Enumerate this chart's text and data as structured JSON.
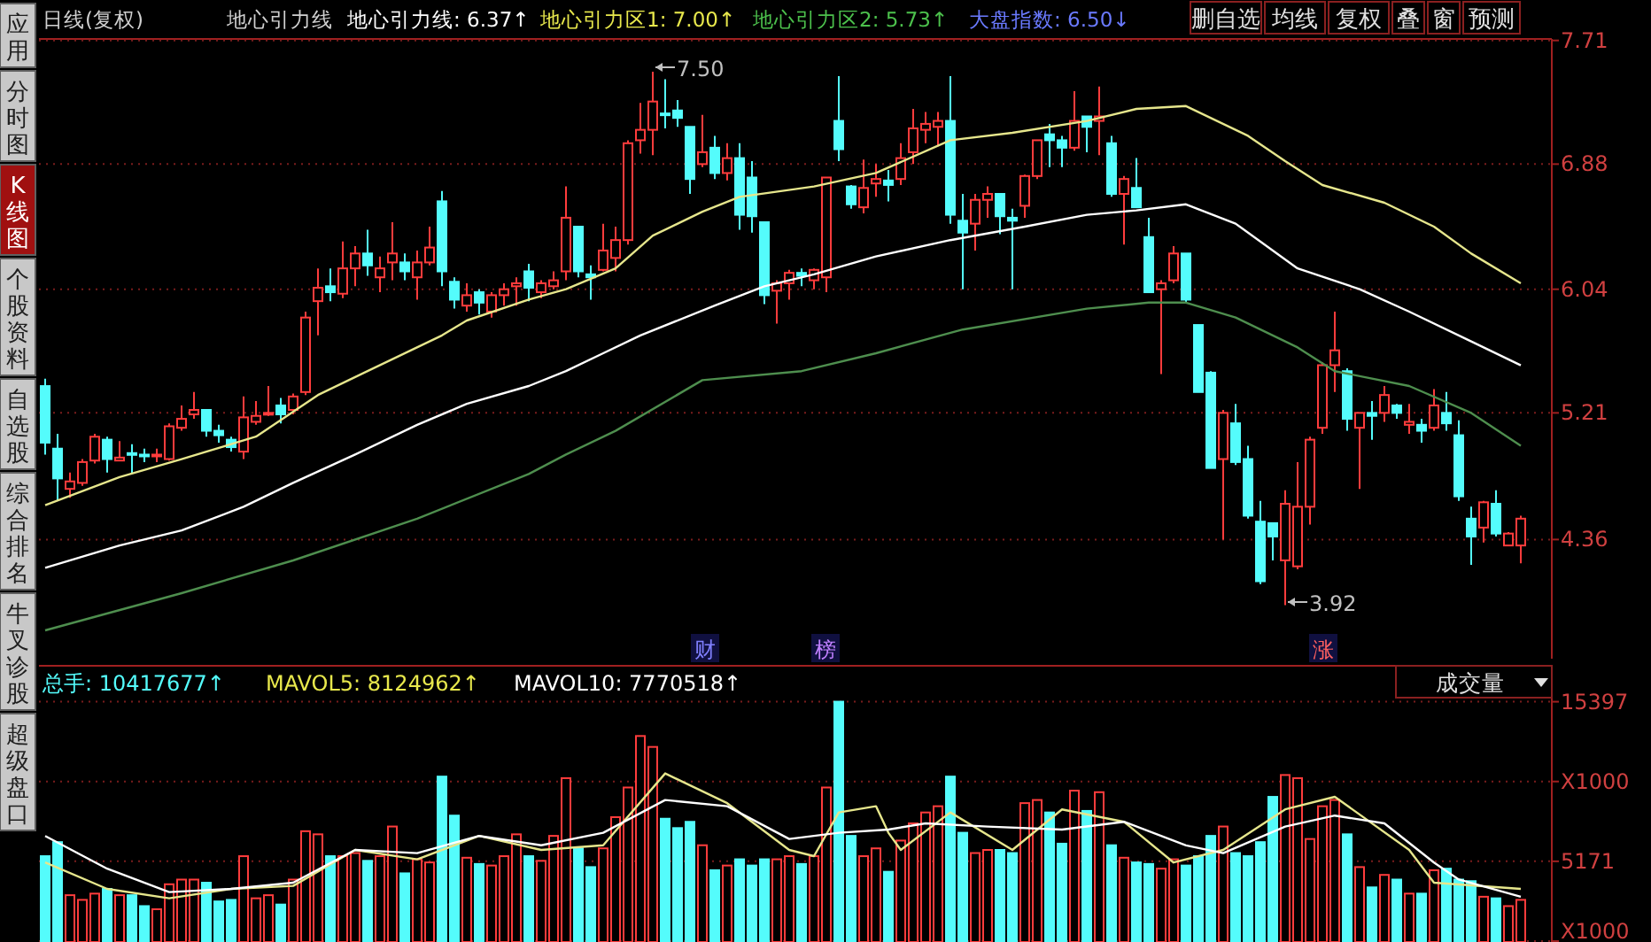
{
  "chart_data": [
    {
      "type": "candlestick",
      "ylim": [
        3.56,
        7.72
      ],
      "yticks": [
        7.71,
        6.88,
        6.04,
        5.21,
        4.36
      ],
      "grid": "y",
      "categories": [
        null,
        null,
        null,
        null,
        null,
        null,
        null,
        null,
        null,
        null,
        null,
        null,
        null,
        null,
        null,
        null,
        null,
        null,
        null,
        null,
        null,
        null,
        null,
        null,
        null,
        null,
        null,
        null,
        null,
        null,
        null,
        null,
        null,
        null,
        null,
        null,
        null,
        null,
        null,
        null,
        null,
        null,
        null,
        null,
        null,
        null,
        null,
        null,
        null,
        null,
        null,
        null,
        null,
        null,
        null,
        null,
        null,
        null,
        null,
        null,
        null,
        null,
        null,
        null,
        null,
        null,
        null,
        null,
        null,
        null,
        null,
        null,
        null,
        null,
        null,
        null,
        null,
        null,
        null,
        null,
        null,
        null,
        null,
        null,
        null,
        null,
        null,
        null,
        null,
        null,
        null,
        null,
        null,
        null,
        null,
        null,
        null,
        null,
        null,
        null,
        null,
        null,
        null,
        null,
        null,
        null,
        null,
        null,
        null,
        null,
        null,
        null,
        null,
        null,
        null,
        null,
        null,
        null,
        null,
        null
      ],
      "colors": [
        "#54fcfc",
        "#54fcfc",
        "#ff3c3c",
        "#ff3c3c",
        "#ff3c3c",
        "#54fcfc",
        "#ff3c3c",
        "#54fcfc",
        "#54fcfc",
        "#ff3c3c",
        "#ff3c3c",
        "#ff3c3c",
        "#ff3c3c",
        "#54fcfc",
        "#54fcfc",
        "#54fcfc",
        "#ff3c3c",
        "#ff3c3c",
        "#ff3c3c",
        "#54fcfc",
        "#ff3c3c",
        "#ff3c3c",
        "#ff3c3c",
        "#54fcfc",
        "#ff3c3c",
        "#ff3c3c",
        "#54fcfc",
        "#ff3c3c",
        "#ff3c3c",
        "#54fcfc",
        "#ff3c3c",
        "#ff3c3c",
        "#54fcfc",
        "#54fcfc",
        "#ff3c3c",
        "#54fcfc",
        "#ff3c3c",
        "#ff3c3c",
        "#ff3c3c",
        "#54fcfc",
        "#ff3c3c",
        "#ff3c3c",
        "#ff3c3c",
        "#54fcfc",
        "#54fcfc",
        "#ff3c3c",
        "#ff3c3c",
        "#ff3c3c",
        "#ff3c3c",
        "#ff3c3c",
        "#54fcfc",
        "#54fcfc",
        "#54fcfc",
        "#ff3c3c",
        "#54fcfc",
        "#ff3c3c",
        "#54fcfc",
        "#54fcfc",
        "#54fcfc",
        "#ff3c3c",
        "#ff3c3c",
        "#54fcfc",
        "#ff3c3c",
        "#ff3c3c",
        "#54fcfc",
        "#54fcfc",
        "#ff3c3c",
        "#ff3c3c",
        "#54fcfc",
        "#ff3c3c",
        "#ff3c3c",
        "#ff3c3c",
        "#ff3c3c",
        "#54fcfc",
        "#54fcfc",
        "#ff3c3c",
        "#ff3c3c",
        "#54fcfc",
        "#54fcfc",
        "#ff3c3c",
        "#ff3c3c",
        "#54fcfc",
        "#54fcfc",
        "#ff3c3c",
        "#54fcfc",
        "#ff3c3c",
        "#54fcfc",
        "#ff3c3c",
        "#54fcfc",
        "#54fcfc",
        "#ff3c3c",
        "#ff3c3c",
        "#54fcfc",
        "#54fcfc",
        "#54fcfc",
        "#ff3c3c",
        "#54fcfc",
        "#54fcfc",
        "#54fcfc",
        "#54fcfc",
        "#ff3c3c",
        "#ff3c3c",
        "#ff3c3c",
        "#ff3c3c",
        "#ff3c3c",
        "#54fcfc",
        "#ff3c3c",
        "#54fcfc",
        "#ff3c3c",
        "#54fcfc",
        "#ff3c3c",
        "#54fcfc",
        "#ff3c3c",
        "#54fcfc",
        "#54fcfc",
        "#54fcfc",
        "#ff3c3c",
        "#54fcfc",
        "#ff3c3c",
        "#ff3c3c"
      ],
      "ohlc": [
        [
          5.39,
          5.44,
          4.93,
          5.01
        ],
        [
          4.97,
          5.07,
          4.62,
          4.77
        ],
        [
          4.7,
          4.81,
          4.64,
          4.75
        ],
        [
          4.74,
          4.9,
          4.72,
          4.88
        ],
        [
          4.89,
          5.07,
          4.87,
          5.05
        ],
        [
          5.03,
          5.05,
          4.81,
          4.9
        ],
        [
          4.89,
          5.02,
          4.89,
          4.91
        ],
        [
          4.94,
          5.0,
          4.8,
          4.93
        ],
        [
          4.93,
          4.97,
          4.88,
          4.92
        ],
        [
          4.92,
          4.97,
          4.88,
          4.93
        ],
        [
          4.9,
          5.14,
          4.89,
          5.12
        ],
        [
          5.11,
          5.26,
          5.09,
          5.17
        ],
        [
          5.2,
          5.35,
          5.17,
          5.23
        ],
        [
          5.23,
          5.23,
          5.05,
          5.09
        ],
        [
          5.09,
          5.13,
          5.01,
          5.06
        ],
        [
          5.03,
          5.05,
          4.95,
          4.98
        ],
        [
          4.95,
          5.32,
          4.9,
          5.18
        ],
        [
          5.15,
          5.29,
          5.13,
          5.19
        ],
        [
          5.2,
          5.39,
          5.19,
          5.21
        ],
        [
          5.26,
          5.31,
          5.14,
          5.2
        ],
        [
          5.23,
          5.34,
          5.2,
          5.32
        ],
        [
          5.35,
          5.89,
          5.33,
          5.85
        ],
        [
          5.96,
          6.18,
          5.73,
          6.05
        ],
        [
          6.06,
          6.18,
          5.96,
          6.02
        ],
        [
          6.01,
          6.36,
          5.98,
          6.18
        ],
        [
          6.18,
          6.33,
          6.06,
          6.28
        ],
        [
          6.28,
          6.44,
          6.13,
          6.2
        ],
        [
          6.12,
          6.26,
          6.02,
          6.18
        ],
        [
          6.22,
          6.49,
          6.1,
          6.28
        ],
        [
          6.22,
          6.28,
          6.1,
          6.16
        ],
        [
          6.12,
          6.3,
          5.97,
          6.22
        ],
        [
          6.22,
          6.46,
          6.2,
          6.32
        ],
        [
          6.63,
          6.7,
          6.06,
          6.16
        ],
        [
          6.09,
          6.12,
          5.91,
          5.97
        ],
        [
          5.93,
          6.08,
          5.89,
          6.0
        ],
        [
          6.02,
          6.04,
          5.87,
          5.95
        ],
        [
          5.89,
          6.02,
          5.85,
          6.0
        ],
        [
          6.0,
          6.08,
          5.93,
          6.04
        ],
        [
          6.06,
          6.12,
          5.93,
          6.08
        ],
        [
          6.16,
          6.21,
          5.96,
          6.05
        ],
        [
          6.02,
          6.1,
          5.98,
          6.08
        ],
        [
          6.06,
          6.16,
          6.04,
          6.1
        ],
        [
          6.16,
          6.73,
          6.1,
          6.52
        ],
        [
          6.46,
          6.46,
          6.12,
          6.16
        ],
        [
          6.14,
          6.2,
          5.97,
          6.12
        ],
        [
          6.17,
          6.48,
          6.16,
          6.3
        ],
        [
          6.25,
          6.46,
          6.16,
          6.37
        ],
        [
          6.37,
          7.04,
          6.34,
          7.02
        ],
        [
          7.04,
          7.29,
          6.95,
          7.11
        ],
        [
          7.11,
          7.5,
          6.94,
          7.3
        ],
        [
          7.22,
          7.45,
          7.12,
          7.21
        ],
        [
          7.24,
          7.31,
          7.13,
          7.19
        ],
        [
          7.13,
          7.13,
          6.68,
          6.78
        ],
        [
          6.88,
          7.21,
          6.86,
          6.96
        ],
        [
          6.99,
          7.07,
          6.78,
          6.82
        ],
        [
          6.82,
          7.02,
          6.77,
          6.92
        ],
        [
          6.92,
          7.02,
          6.44,
          6.54
        ],
        [
          6.79,
          6.9,
          6.42,
          6.53
        ],
        [
          6.49,
          6.49,
          5.94,
          6.0
        ],
        [
          6.03,
          6.1,
          5.81,
          6.08
        ],
        [
          6.08,
          6.17,
          5.97,
          6.15
        ],
        [
          6.15,
          6.18,
          6.06,
          6.13
        ],
        [
          6.1,
          6.18,
          6.04,
          6.17
        ],
        [
          6.12,
          6.79,
          6.02,
          6.79
        ],
        [
          7.17,
          7.47,
          6.9,
          6.98
        ],
        [
          6.73,
          6.74,
          6.58,
          6.61
        ],
        [
          6.59,
          6.91,
          6.55,
          6.72
        ],
        [
          6.75,
          6.88,
          6.66,
          6.78
        ],
        [
          6.77,
          6.84,
          6.63,
          6.74
        ],
        [
          6.78,
          7.02,
          6.74,
          6.92
        ],
        [
          6.96,
          7.25,
          6.88,
          7.12
        ],
        [
          7.11,
          7.23,
          7.02,
          7.15
        ],
        [
          7.13,
          7.23,
          7.0,
          7.17
        ],
        [
          7.17,
          7.47,
          6.48,
          6.54
        ],
        [
          6.5,
          6.68,
          6.04,
          6.42
        ],
        [
          6.48,
          6.68,
          6.3,
          6.64
        ],
        [
          6.64,
          6.73,
          6.52,
          6.68
        ],
        [
          6.68,
          6.68,
          6.41,
          6.53
        ],
        [
          6.52,
          6.58,
          6.04,
          6.5
        ],
        [
          6.6,
          6.81,
          6.52,
          6.8
        ],
        [
          6.8,
          7.04,
          6.78,
          7.04
        ],
        [
          7.08,
          7.15,
          6.86,
          7.04
        ],
        [
          7.04,
          7.07,
          6.86,
          6.99
        ],
        [
          6.99,
          7.37,
          6.97,
          7.17
        ],
        [
          7.2,
          7.2,
          6.96,
          7.13
        ],
        [
          7.17,
          7.4,
          6.94,
          7.2
        ],
        [
          7.02,
          7.07,
          6.66,
          6.68
        ],
        [
          6.68,
          6.8,
          6.34,
          6.78
        ],
        [
          6.72,
          6.92,
          6.59,
          6.59
        ],
        [
          6.39,
          6.52,
          6.02,
          6.02
        ],
        [
          6.04,
          6.1,
          5.47,
          6.08
        ],
        [
          6.1,
          6.33,
          6.08,
          6.28
        ],
        [
          6.28,
          6.28,
          5.95,
          5.97
        ],
        [
          5.8,
          5.8,
          5.35,
          5.35
        ],
        [
          5.48,
          5.49,
          4.84,
          4.84
        ],
        [
          4.9,
          5.23,
          4.36,
          5.21
        ],
        [
          5.14,
          5.27,
          4.86,
          4.88
        ],
        [
          4.9,
          4.99,
          4.5,
          4.52
        ],
        [
          4.48,
          4.62,
          4.06,
          4.08
        ],
        [
          4.47,
          4.47,
          4.22,
          4.38
        ],
        [
          4.22,
          4.69,
          3.92,
          4.6
        ],
        [
          4.18,
          4.88,
          4.16,
          4.58
        ],
        [
          4.58,
          5.05,
          4.46,
          5.03
        ],
        [
          5.11,
          5.55,
          5.07,
          5.53
        ],
        [
          5.53,
          5.89,
          5.35,
          5.63
        ],
        [
          5.49,
          5.51,
          5.09,
          5.17
        ],
        [
          5.11,
          5.21,
          4.7,
          5.21
        ],
        [
          5.21,
          5.29,
          5.03,
          5.19
        ],
        [
          5.21,
          5.39,
          5.15,
          5.33
        ],
        [
          5.26,
          5.27,
          5.17,
          5.21
        ],
        [
          5.13,
          5.27,
          5.07,
          5.15
        ],
        [
          5.13,
          5.17,
          5.01,
          5.09
        ],
        [
          5.11,
          5.37,
          5.09,
          5.26
        ],
        [
          5.21,
          5.35,
          5.09,
          5.14
        ],
        [
          5.06,
          5.16,
          4.62,
          4.65
        ],
        [
          4.5,
          4.58,
          4.19,
          4.38
        ],
        [
          4.44,
          4.62,
          4.34,
          4.61
        ],
        [
          4.6,
          4.69,
          4.38,
          4.4
        ],
        [
          4.32,
          4.41,
          4.32,
          4.4
        ],
        [
          4.32,
          4.52,
          4.2,
          4.5
        ]
      ],
      "series": [
        {
          "type": "line",
          "color": "#e6e68c",
          "values": [
            4.59,
            null,
            null,
            null,
            null,
            null,
            4.78,
            null,
            null,
            null,
            null,
            4.9,
            null,
            null,
            null,
            null,
            null,
            5.05,
            null,
            null,
            null,
            null,
            5.33,
            null,
            null,
            null,
            5.49,
            null,
            null,
            null,
            null,
            null,
            5.73,
            null,
            5.83,
            null,
            null,
            null,
            null,
            5.97,
            null,
            null,
            6.04,
            null,
            null,
            null,
            6.18,
            null,
            null,
            6.4,
            null,
            null,
            null,
            6.56,
            null,
            null,
            6.66,
            null,
            null,
            null,
            null,
            null,
            6.73,
            null,
            null,
            null,
            null,
            6.82,
            null,
            null,
            null,
            null,
            null,
            7.04,
            null,
            null,
            null,
            null,
            7.09,
            null,
            null,
            null,
            null,
            null,
            7.17,
            null,
            null,
            null,
            7.25,
            null,
            null,
            null,
            7.27,
            null,
            null,
            null,
            null,
            7.07,
            null,
            null,
            6.9,
            null,
            null,
            6.74,
            null,
            null,
            null,
            null,
            6.62,
            null,
            null,
            null,
            6.46,
            null,
            null,
            6.28,
            null,
            null,
            null,
            6.08
          ]
        },
        {
          "type": "line",
          "color": "#ffffff",
          "values": [
            4.17,
            null,
            null,
            null,
            null,
            null,
            4.32,
            null,
            null,
            null,
            null,
            4.42,
            null,
            null,
            null,
            null,
            4.58,
            null,
            null,
            null,
            4.74,
            null,
            null,
            null,
            null,
            4.93,
            null,
            null,
            null,
            null,
            5.13,
            null,
            null,
            null,
            5.27,
            null,
            null,
            null,
            null,
            5.39,
            null,
            null,
            5.49,
            null,
            null,
            5.61,
            null,
            null,
            5.73,
            null,
            null,
            null,
            null,
            null,
            5.93,
            null,
            null,
            null,
            6.06,
            null,
            null,
            null,
            6.14,
            null,
            null,
            null,
            null,
            6.26,
            null,
            null,
            null,
            null,
            null,
            6.37,
            null,
            null,
            null,
            null,
            null,
            6.46,
            null,
            null,
            null,
            null,
            6.54,
            null,
            null,
            null,
            6.57,
            null,
            null,
            null,
            6.61,
            null,
            null,
            null,
            6.48,
            null,
            null,
            null,
            null,
            6.18,
            null,
            null,
            null,
            null,
            6.04,
            null,
            null,
            null,
            5.89,
            null,
            null,
            null,
            null,
            5.69,
            null,
            null,
            null,
            5.53
          ]
        },
        {
          "type": "line",
          "color": "#4e8e4e",
          "values": [
            3.75,
            null,
            null,
            null,
            null,
            null,
            null,
            null,
            null,
            null,
            null,
            4.0,
            null,
            null,
            null,
            null,
            null,
            null,
            null,
            null,
            4.22,
            null,
            null,
            null,
            null,
            null,
            null,
            null,
            null,
            null,
            4.5,
            null,
            null,
            null,
            null,
            null,
            null,
            null,
            null,
            4.8,
            null,
            null,
            4.93,
            null,
            null,
            null,
            5.09,
            null,
            null,
            null,
            null,
            null,
            null,
            5.43,
            null,
            null,
            null,
            null,
            null,
            null,
            null,
            5.49,
            null,
            null,
            null,
            null,
            null,
            5.61,
            null,
            null,
            null,
            null,
            null,
            null,
            5.77,
            null,
            null,
            null,
            null,
            null,
            null,
            null,
            null,
            null,
            5.91,
            null,
            null,
            null,
            null,
            5.95,
            null,
            null,
            5.95,
            null,
            null,
            null,
            5.85,
            null,
            null,
            null,
            null,
            5.65,
            null,
            null,
            5.49,
            null,
            null,
            null,
            null,
            null,
            5.39,
            null,
            null,
            null,
            null,
            5.21,
            null,
            null,
            null,
            4.99
          ]
        }
      ],
      "annotations": [
        "日线(复权)",
        "地心引力线",
        "地心引力线: 6.37↑",
        "地心引力区1: 7.00↑",
        "地心引力区2: 5.73↑",
        "大盘指数: 6.50↓",
        "删自选",
        "均线",
        "复权",
        "叠",
        "窗",
        "预测",
        "财",
        "榜",
        "涨",
        "7.50",
        "3.92",
        "应用",
        "分时图",
        "K线图",
        "个股资料",
        "自选股",
        "综合排名",
        "牛叉诊股",
        "超级盘口"
      ]
    },
    {
      "type": "bar",
      "ylim": [
        0,
        17700
      ],
      "yticks": [
        15397,
        {
          "value": 10284,
          "label": "X1000"
        },
        5171,
        {
          "value": 58,
          "label": "X1000"
        }
      ],
      "grid": "y",
      "categories": [
        null,
        null,
        null,
        null,
        null,
        null,
        null,
        null,
        null,
        null,
        null,
        null,
        null,
        null,
        null,
        null,
        null,
        null,
        null,
        null,
        null,
        null,
        null,
        null,
        null,
        null,
        null,
        null,
        null,
        null,
        null,
        null,
        null,
        null,
        null,
        null,
        null,
        null,
        null,
        null,
        null,
        null,
        null,
        null,
        null,
        null,
        null,
        null,
        null,
        null,
        null,
        null,
        null,
        null,
        null,
        null,
        null,
        null,
        null,
        null,
        null,
        null,
        null,
        null,
        null,
        null,
        null,
        null,
        null,
        null,
        null,
        null,
        null,
        null,
        null,
        null,
        null,
        null,
        null,
        null,
        null,
        null,
        null,
        null,
        null,
        null,
        null,
        null,
        null,
        null,
        null,
        null,
        null,
        null,
        null,
        null,
        null,
        null,
        null,
        null,
        null,
        null,
        null,
        null,
        null,
        null,
        null,
        null,
        null,
        null,
        null,
        null,
        null,
        null,
        null,
        null,
        null,
        null,
        null,
        null
      ],
      "colors": [
        "#54fcfc",
        "#54fcfc",
        "#ff3c3c",
        "#ff3c3c",
        "#ff3c3c",
        "#54fcfc",
        "#ff3c3c",
        "#54fcfc",
        "#54fcfc",
        "#ff3c3c",
        "#ff3c3c",
        "#ff3c3c",
        "#ff3c3c",
        "#54fcfc",
        "#54fcfc",
        "#54fcfc",
        "#ff3c3c",
        "#ff3c3c",
        "#ff3c3c",
        "#54fcfc",
        "#ff3c3c",
        "#ff3c3c",
        "#ff3c3c",
        "#54fcfc",
        "#ff3c3c",
        "#ff3c3c",
        "#54fcfc",
        "#ff3c3c",
        "#ff3c3c",
        "#54fcfc",
        "#ff3c3c",
        "#ff3c3c",
        "#54fcfc",
        "#54fcfc",
        "#ff3c3c",
        "#54fcfc",
        "#ff3c3c",
        "#ff3c3c",
        "#ff3c3c",
        "#54fcfc",
        "#ff3c3c",
        "#ff3c3c",
        "#ff3c3c",
        "#54fcfc",
        "#54fcfc",
        "#ff3c3c",
        "#ff3c3c",
        "#ff3c3c",
        "#ff3c3c",
        "#ff3c3c",
        "#54fcfc",
        "#54fcfc",
        "#54fcfc",
        "#ff3c3c",
        "#54fcfc",
        "#ff3c3c",
        "#54fcfc",
        "#54fcfc",
        "#54fcfc",
        "#ff3c3c",
        "#ff3c3c",
        "#54fcfc",
        "#ff3c3c",
        "#ff3c3c",
        "#54fcfc",
        "#54fcfc",
        "#ff3c3c",
        "#ff3c3c",
        "#54fcfc",
        "#ff3c3c",
        "#ff3c3c",
        "#ff3c3c",
        "#ff3c3c",
        "#54fcfc",
        "#54fcfc",
        "#ff3c3c",
        "#ff3c3c",
        "#54fcfc",
        "#54fcfc",
        "#ff3c3c",
        "#ff3c3c",
        "#54fcfc",
        "#54fcfc",
        "#ff3c3c",
        "#54fcfc",
        "#ff3c3c",
        "#54fcfc",
        "#ff3c3c",
        "#54fcfc",
        "#54fcfc",
        "#ff3c3c",
        "#ff3c3c",
        "#54fcfc",
        "#54fcfc",
        "#54fcfc",
        "#ff3c3c",
        "#54fcfc",
        "#54fcfc",
        "#54fcfc",
        "#54fcfc",
        "#ff3c3c",
        "#ff3c3c",
        "#ff3c3c",
        "#ff3c3c",
        "#ff3c3c",
        "#54fcfc",
        "#ff3c3c",
        "#54fcfc",
        "#ff3c3c",
        "#54fcfc",
        "#ff3c3c",
        "#54fcfc",
        "#ff3c3c",
        "#54fcfc",
        "#54fcfc",
        "#54fcfc",
        "#ff3c3c",
        "#54fcfc",
        "#ff3c3c",
        "#ff3c3c"
      ],
      "values": [
        5500,
        6400,
        3000,
        2700,
        3100,
        3400,
        3000,
        3000,
        2300,
        2100,
        3700,
        4000,
        4000,
        3800,
        2600,
        2700,
        5500,
        2800,
        3000,
        2400,
        4000,
        7100,
        6900,
        5500,
        5500,
        5700,
        5200,
        5500,
        7400,
        4400,
        5300,
        5100,
        10600,
        8100,
        5400,
        5000,
        4900,
        5500,
        6900,
        5500,
        5200,
        6800,
        10500,
        6000,
        4800,
        6000,
        8000,
        9900,
        13200,
        12500,
        7900,
        7300,
        7700,
        6200,
        4600,
        4900,
        5300,
        4900,
        5300,
        5300,
        5500,
        5000,
        5500,
        9900,
        15400,
        6800,
        5500,
        6000,
        4500,
        6500,
        7600,
        8300,
        8700,
        10600,
        7000,
        5700,
        5900,
        5900,
        5700,
        8900,
        9100,
        8300,
        6300,
        9700,
        8400,
        9600,
        6200,
        5400,
        5100,
        5000,
        4700,
        5300,
        4900,
        5500,
        6800,
        7400,
        5700,
        5500,
        6400,
        9300,
        10700,
        10500,
        6600,
        8700,
        9100,
        6900,
        4800,
        3500,
        4300,
        4000,
        3100,
        3100,
        4600,
        4700,
        4000,
        3900,
        2900,
        2800,
        2300,
        2700
      ],
      "series": [
        {
          "type": "line",
          "color": "#e6e68c",
          "values": [
            5100,
            null,
            null,
            null,
            null,
            3400,
            null,
            null,
            null,
            null,
            2800,
            null,
            null,
            null,
            null,
            3400,
            null,
            null,
            null,
            null,
            3600,
            null,
            null,
            null,
            null,
            5900,
            null,
            null,
            null,
            null,
            5300,
            null,
            null,
            null,
            null,
            6800,
            null,
            null,
            null,
            null,
            5900,
            null,
            null,
            null,
            null,
            6200,
            null,
            null,
            null,
            null,
            10800,
            null,
            null,
            null,
            null,
            8900,
            null,
            null,
            null,
            null,
            5900,
            null,
            5500,
            null,
            8300,
            null,
            null,
            8700,
            7000,
            5900,
            null,
            null,
            null,
            8300,
            null,
            null,
            null,
            null,
            5900,
            null,
            null,
            null,
            8500,
            null,
            null,
            null,
            null,
            7700,
            null,
            null,
            null,
            5100,
            null,
            null,
            null,
            5900,
            null,
            null,
            null,
            null,
            8500,
            null,
            null,
            null,
            9300,
            null,
            null,
            null,
            null,
            null,
            5900,
            null,
            3800,
            null,
            null,
            null,
            null,
            null,
            null,
            3400
          ]
        },
        {
          "type": "line",
          "color": "#ffffff",
          "values": [
            6800,
            null,
            null,
            null,
            null,
            4700,
            null,
            null,
            null,
            null,
            3200,
            null,
            null,
            null,
            null,
            3400,
            null,
            null,
            null,
            null,
            3800,
            null,
            null,
            null,
            null,
            5900,
            null,
            null,
            null,
            null,
            5700,
            null,
            null,
            null,
            null,
            6800,
            null,
            null,
            null,
            null,
            6200,
            null,
            null,
            null,
            null,
            7000,
            null,
            null,
            null,
            null,
            9100,
            null,
            null,
            null,
            null,
            8700,
            null,
            null,
            null,
            null,
            6600,
            null,
            null,
            null,
            7000,
            null,
            null,
            null,
            7200,
            null,
            null,
            7600,
            null,
            null,
            null,
            null,
            7400,
            null,
            null,
            null,
            null,
            null,
            7200,
            null,
            null,
            null,
            null,
            7700,
            null,
            null,
            null,
            null,
            6200,
            null,
            null,
            5700,
            null,
            null,
            null,
            null,
            7400,
            null,
            null,
            null,
            8100,
            null,
            null,
            null,
            7600,
            null,
            null,
            null,
            5100,
            null,
            4000,
            null,
            null,
            null,
            null,
            2900
          ]
        }
      ],
      "annotations": [
        "总手: 10417677↑",
        "MAVOL5: 8124962↑",
        "MAVOL10: 7770518↑",
        "成交量"
      ]
    }
  ]
}
